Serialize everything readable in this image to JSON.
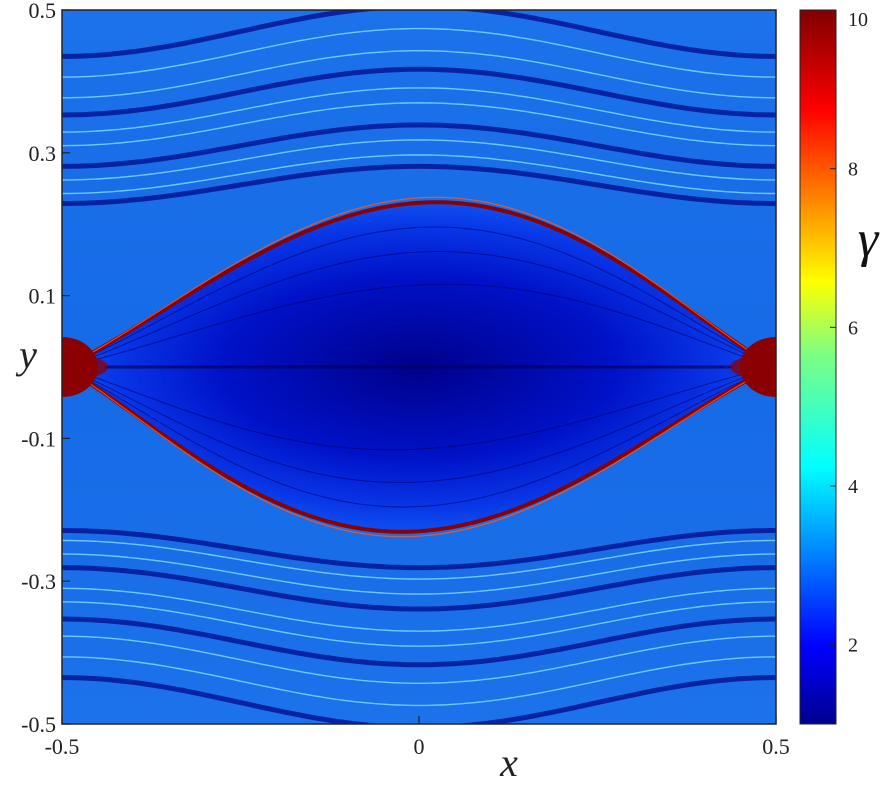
{
  "chart_data": {
    "type": "heatmap",
    "xlabel": "x",
    "ylabel": "y",
    "xlim": [
      -0.5,
      0.5
    ],
    "ylim": [
      -0.5,
      0.5
    ],
    "xticks": [
      "-0.5",
      "0",
      "0.5"
    ],
    "yticks": [
      "0.5",
      "0.3",
      "0.1",
      "-0.1",
      "-0.3",
      "-0.5"
    ],
    "colorbar": {
      "label": "γ",
      "range": [
        1,
        10
      ],
      "ticks": [
        "10",
        "8",
        "6",
        "4",
        "2"
      ],
      "colormap": "jet"
    },
    "colors": {
      "background_field": "#1a6fe8",
      "island_core": "#00008f",
      "separatrix": "#8b0000",
      "bright_lines": "#7fd8ff"
    },
    "features": {
      "island_center": [
        0,
        0
      ],
      "island_half_height": 0.23,
      "x_points": [
        [
          -0.5,
          0
        ],
        [
          0.5,
          0
        ]
      ]
    }
  }
}
